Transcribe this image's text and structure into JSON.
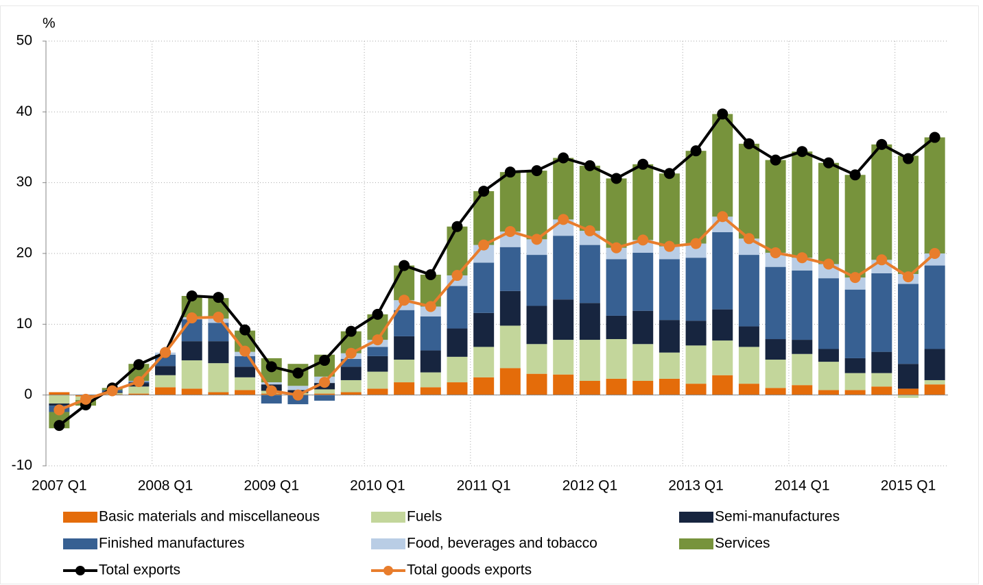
{
  "chart_data": {
    "type": "bar",
    "y_label": "%",
    "categories": [
      "2007 Q1",
      null,
      null,
      null,
      "2008 Q1",
      null,
      null,
      null,
      "2009 Q1",
      null,
      null,
      null,
      "2010 Q1",
      null,
      null,
      null,
      "2011 Q1",
      null,
      null,
      null,
      "2012 Q1",
      null,
      null,
      null,
      "2013 Q1",
      null,
      null,
      null,
      "2014 Q1",
      null,
      null,
      null,
      "2015 Q1",
      null
    ],
    "ylim": [
      -10,
      50
    ],
    "yticks": [
      -10,
      0,
      10,
      20,
      30,
      40,
      50
    ],
    "grid": true,
    "series": [
      {
        "name": "Basic materials and miscellaneous",
        "color": "#e46c0a",
        "type": "bar",
        "values": [
          0.4,
          -0.2,
          0.1,
          0.2,
          1.1,
          0.9,
          0.4,
          0.7,
          0.2,
          0.1,
          0.2,
          0.4,
          0.9,
          1.8,
          1.1,
          1.8,
          2.5,
          3.8,
          3.0,
          2.9,
          2.0,
          2.3,
          2.0,
          2.3,
          1.6,
          2.8,
          1.6,
          1.0,
          1.4,
          0.7,
          0.7,
          1.2,
          0.9,
          1.5
        ]
      },
      {
        "name": "Fuels",
        "color": "#c3d69b",
        "type": "bar",
        "values": [
          -1.2,
          -0.5,
          0.2,
          1.0,
          1.7,
          4.0,
          4.1,
          1.8,
          0.4,
          0.2,
          0.6,
          1.7,
          2.4,
          3.2,
          2.1,
          3.6,
          4.3,
          6.0,
          4.2,
          4.9,
          5.8,
          5.6,
          5.2,
          3.7,
          5.4,
          4.9,
          5.2,
          4.0,
          4.4,
          4.0,
          2.4,
          1.9,
          -0.4,
          0.6
        ]
      },
      {
        "name": "Semi-manufactures",
        "color": "#17253f",
        "type": "bar",
        "values": [
          -0.3,
          0,
          0.1,
          0.5,
          1.3,
          2.7,
          3.1,
          1.5,
          0.9,
          0.4,
          0.9,
          1.9,
          2.2,
          3.3,
          3.1,
          4.0,
          4.8,
          4.9,
          5.4,
          5.7,
          5.2,
          3.3,
          4.7,
          4.6,
          3.5,
          4.4,
          2.9,
          2.9,
          2.0,
          1.8,
          2.1,
          3.0,
          3.5,
          4.4
        ]
      },
      {
        "name": "Finished manufactures",
        "color": "#376092",
        "type": "bar",
        "values": [
          -0.9,
          0,
          0.3,
          0.2,
          1.6,
          3.1,
          2.6,
          1.5,
          -1.2,
          -1.3,
          -0.8,
          1.1,
          1.3,
          3.7,
          4.8,
          6.0,
          7.1,
          6.2,
          7.2,
          9.0,
          8.2,
          8.0,
          8.2,
          8.6,
          8.9,
          10.9,
          10.1,
          10.2,
          9.8,
          10.0,
          9.7,
          11.1,
          11.3,
          11.8
        ]
      },
      {
        "name": "Food, beverages and tobacco",
        "color": "#b9cde5",
        "type": "bar",
        "values": [
          0,
          0.1,
          0,
          0.1,
          0.3,
          0.3,
          0.6,
          0.6,
          0.3,
          0.6,
          0.9,
          0.8,
          1.0,
          1.4,
          1.4,
          1.5,
          2.5,
          2.2,
          2.2,
          2.3,
          2.0,
          1.6,
          1.8,
          1.8,
          2.0,
          2.2,
          2.3,
          2.0,
          1.8,
          2.0,
          1.7,
          1.9,
          1.4,
          1.7
        ]
      },
      {
        "name": "Services",
        "color": "#77933c",
        "type": "bar",
        "values": [
          -2.3,
          -0.8,
          0.3,
          2.4,
          0,
          3.0,
          2.9,
          3.0,
          3.4,
          3.1,
          3.1,
          3.1,
          3.6,
          4.9,
          4.5,
          6.9,
          7.6,
          8.4,
          9.7,
          8.7,
          9.2,
          9.8,
          10.7,
          10.3,
          13.1,
          14.5,
          13.4,
          13.1,
          15.0,
          14.3,
          14.5,
          16.3,
          16.7,
          16.4
        ]
      },
      {
        "name": "Total exports",
        "color": "#000000",
        "type": "line",
        "values": [
          -4.3,
          -1.4,
          1.0,
          4.3,
          6.0,
          14.0,
          13.8,
          9.2,
          4.0,
          3.1,
          4.9,
          9.0,
          11.4,
          18.3,
          17.0,
          23.8,
          28.8,
          31.5,
          31.7,
          33.5,
          32.4,
          30.6,
          32.6,
          31.3,
          34.5,
          39.7,
          35.5,
          33.2,
          34.4,
          32.8,
          31.1,
          35.4,
          33.4,
          36.4
        ]
      },
      {
        "name": "Total goods exports",
        "color": "#e87d2c",
        "type": "line",
        "values": [
          -2.1,
          -0.6,
          0.6,
          1.9,
          6.0,
          10.9,
          11.0,
          6.2,
          0.6,
          0.0,
          1.8,
          5.9,
          7.8,
          13.4,
          12.5,
          16.9,
          21.2,
          23.1,
          22.0,
          24.8,
          23.2,
          20.8,
          21.9,
          21.0,
          21.4,
          25.2,
          22.1,
          20.1,
          19.4,
          18.5,
          16.6,
          19.1,
          16.7,
          20.0
        ]
      }
    ]
  }
}
